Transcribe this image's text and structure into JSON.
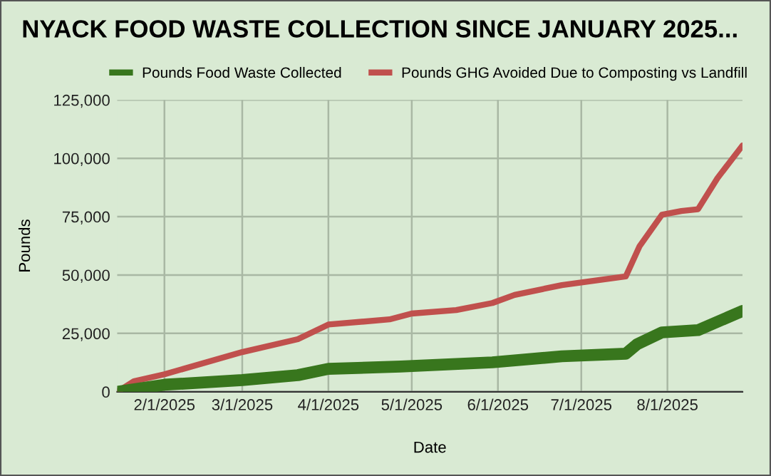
{
  "chart_data": {
    "type": "line",
    "title": "NYACK FOOD WASTE COLLECTION SINCE JANUARY 2025...",
    "xlabel": "Date",
    "ylabel": "Pounds",
    "series": [
      {
        "name": "Pounds Food Waste Collected",
        "color": "#38761d",
        "x": [
          "2025-01-15",
          "2025-02-01",
          "2025-03-01",
          "2025-03-21",
          "2025-04-01",
          "2025-04-27",
          "2025-05-30",
          "2025-06-24",
          "2025-07-17",
          "2025-07-21",
          "2025-07-30",
          "2025-08-12",
          "2025-08-28"
        ],
        "values": [
          0,
          3000,
          5000,
          7100,
          9800,
          10800,
          12600,
          15200,
          16300,
          20300,
          25400,
          26400,
          34600
        ]
      },
      {
        "name": "Pounds GHG Avoided Due to Composting vs Landfill",
        "color": "#c0504d",
        "x": [
          "2025-01-15",
          "2025-01-21",
          "2025-02-01",
          "2025-03-01",
          "2025-03-21",
          "2025-04-01",
          "2025-04-23",
          "2025-05-01",
          "2025-05-17",
          "2025-05-30",
          "2025-06-07",
          "2025-06-24",
          "2025-07-17",
          "2025-07-22",
          "2025-07-30",
          "2025-08-06",
          "2025-08-12",
          "2025-08-19",
          "2025-08-28"
        ],
        "values": [
          0,
          4500,
          7500,
          17000,
          22500,
          28800,
          31000,
          33500,
          35000,
          38000,
          41500,
          45700,
          49400,
          62400,
          75800,
          77400,
          78200,
          91500,
          105500
        ]
      }
    ],
    "xlim": [
      "2025-01-15",
      "2025-08-28"
    ],
    "xticks": [
      {
        "value": "2025-02-01",
        "label": "2/1/2025"
      },
      {
        "value": "2025-03-01",
        "label": "3/1/2025"
      },
      {
        "value": "2025-04-01",
        "label": "4/1/2025"
      },
      {
        "value": "2025-05-01",
        "label": "5/1/2025"
      },
      {
        "value": "2025-06-01",
        "label": "6/1/2025"
      },
      {
        "value": "2025-07-01",
        "label": "7/1/2025"
      },
      {
        "value": "2025-08-01",
        "label": "8/1/2025"
      }
    ],
    "ylim": [
      0,
      125000
    ],
    "yticks": [
      {
        "value": 0,
        "label": "0"
      },
      {
        "value": 25000,
        "label": "25,000"
      },
      {
        "value": 50000,
        "label": "50,000"
      },
      {
        "value": 75000,
        "label": "75,000"
      },
      {
        "value": 100000,
        "label": "100,000"
      },
      {
        "value": 125000,
        "label": "125,000"
      }
    ],
    "grid": true,
    "legend": "top",
    "marker": "none",
    "line_style": "solid"
  }
}
